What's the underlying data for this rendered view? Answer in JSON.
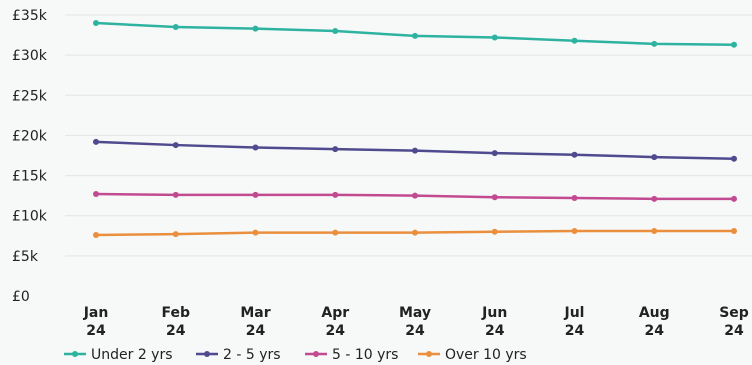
{
  "chart_data": {
    "type": "line",
    "categories": [
      [
        "Jan",
        "24"
      ],
      [
        "Feb",
        "24"
      ],
      [
        "Mar",
        "24"
      ],
      [
        "Apr",
        "24"
      ],
      [
        "May",
        "24"
      ],
      [
        "Jun",
        "24"
      ],
      [
        "Jul",
        "24"
      ],
      [
        "Aug",
        "24"
      ],
      [
        "Sep",
        "24"
      ]
    ],
    "y_ticks": [
      "£0",
      "£5k",
      "£10k",
      "£15k",
      "£20k",
      "£25k",
      "£30k",
      "£35k"
    ],
    "y_tick_values": [
      0,
      5000,
      10000,
      15000,
      20000,
      25000,
      30000,
      35000
    ],
    "ylim": [
      0,
      35000
    ],
    "grid": true,
    "legend_position": "bottom-left",
    "series": [
      {
        "name": "Under 2 yrs",
        "color": "#2eb3a0",
        "values": [
          34000,
          33500,
          33300,
          33000,
          32400,
          32200,
          31800,
          31400,
          31300
        ]
      },
      {
        "name": "2 - 5 yrs",
        "color": "#4f4b8e",
        "values": [
          19200,
          18800,
          18500,
          18300,
          18100,
          17800,
          17600,
          17300,
          17100
        ]
      },
      {
        "name": "5 - 10 yrs",
        "color": "#c24a91",
        "values": [
          12700,
          12600,
          12600,
          12600,
          12500,
          12300,
          12200,
          12100,
          12100
        ]
      },
      {
        "name": "Over 10 yrs",
        "color": "#ea8f3e",
        "values": [
          7600,
          7700,
          7900,
          7900,
          7900,
          8000,
          8100,
          8100,
          8100
        ]
      }
    ]
  }
}
